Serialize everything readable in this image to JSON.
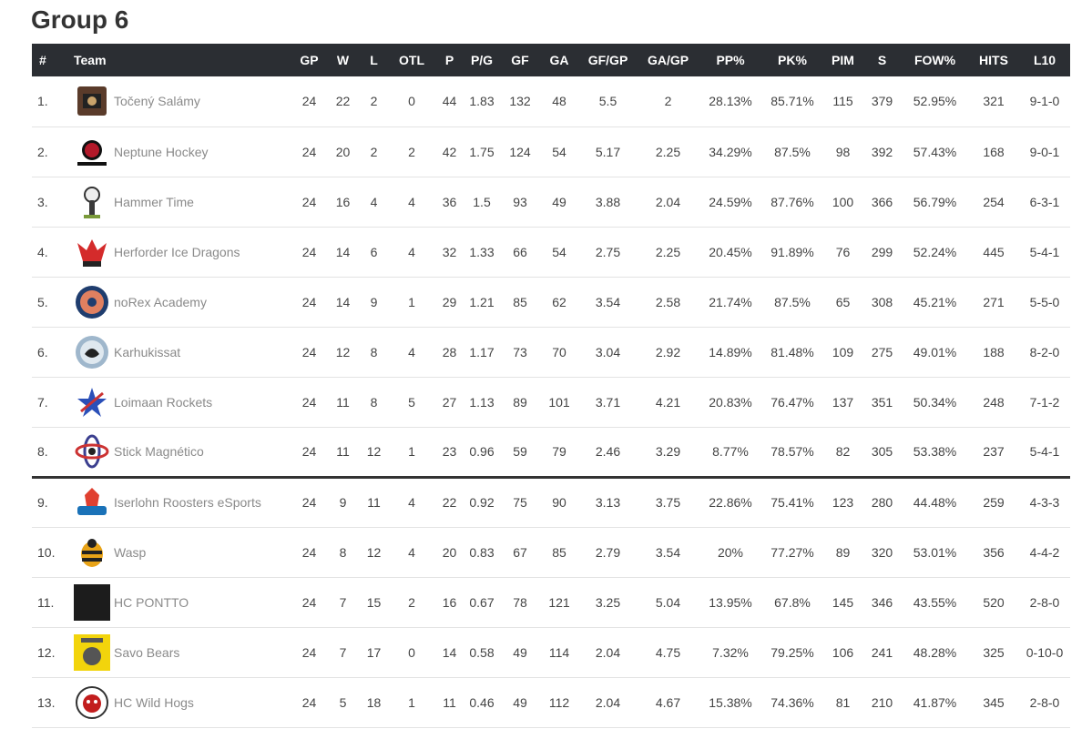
{
  "title": "Group 6",
  "columns": [
    "#",
    "Team",
    "GP",
    "W",
    "L",
    "OTL",
    "P",
    "P/G",
    "GF",
    "GA",
    "GF/GP",
    "GA/GP",
    "PP%",
    "PK%",
    "PIM",
    "S",
    "FOW%",
    "HITS",
    "L10"
  ],
  "cutline_after_rank": 8,
  "rows": [
    {
      "rank": "1.",
      "team": "Točený Salámy",
      "logo": "salamy-logo-icon",
      "color": "#5a3b2a",
      "gp": "24",
      "w": "22",
      "l": "2",
      "otl": "0",
      "p": "44",
      "pg": "1.83",
      "gf": "132",
      "ga": "48",
      "gfgp": "5.5",
      "gagp": "2",
      "pp": "28.13%",
      "pk": "85.71%",
      "pim": "115",
      "s": "379",
      "fow": "52.95%",
      "hits": "321",
      "l10": "9-1-0"
    },
    {
      "rank": "2.",
      "team": "Neptune Hockey",
      "logo": "neptune-logo-icon",
      "color": "#b3192a",
      "gp": "24",
      "w": "20",
      "l": "2",
      "otl": "2",
      "p": "42",
      "pg": "1.75",
      "gf": "124",
      "ga": "54",
      "gfgp": "5.17",
      "gagp": "2.25",
      "pp": "34.29%",
      "pk": "87.5%",
      "pim": "98",
      "s": "392",
      "fow": "57.43%",
      "hits": "168",
      "l10": "9-0-1"
    },
    {
      "rank": "3.",
      "team": "Hammer Time",
      "logo": "hammer-logo-icon",
      "color": "#3a3a3a",
      "gp": "24",
      "w": "16",
      "l": "4",
      "otl": "4",
      "p": "36",
      "pg": "1.5",
      "gf": "93",
      "ga": "49",
      "gfgp": "3.88",
      "gagp": "2.04",
      "pp": "24.59%",
      "pk": "87.76%",
      "pim": "100",
      "s": "366",
      "fow": "56.79%",
      "hits": "254",
      "l10": "6-3-1"
    },
    {
      "rank": "4.",
      "team": "Herforder Ice Dragons",
      "logo": "dragon-logo-icon",
      "color": "#d42b2b",
      "gp": "24",
      "w": "14",
      "l": "6",
      "otl": "4",
      "p": "32",
      "pg": "1.33",
      "gf": "66",
      "ga": "54",
      "gfgp": "2.75",
      "gagp": "2.25",
      "pp": "20.45%",
      "pk": "91.89%",
      "pim": "76",
      "s": "299",
      "fow": "52.24%",
      "hits": "445",
      "l10": "5-4-1"
    },
    {
      "rank": "5.",
      "team": "noRex Academy",
      "logo": "norex-logo-icon",
      "color": "#1f3d6e",
      "gp": "24",
      "w": "14",
      "l": "9",
      "otl": "1",
      "p": "29",
      "pg": "1.21",
      "gf": "85",
      "ga": "62",
      "gfgp": "3.54",
      "gagp": "2.58",
      "pp": "21.74%",
      "pk": "87.5%",
      "pim": "65",
      "s": "308",
      "fow": "45.21%",
      "hits": "271",
      "l10": "5-5-0"
    },
    {
      "rank": "6.",
      "team": "Karhukissat",
      "logo": "karhukissat-logo-icon",
      "color": "#2d4f7a",
      "gp": "24",
      "w": "12",
      "l": "8",
      "otl": "4",
      "p": "28",
      "pg": "1.17",
      "gf": "73",
      "ga": "70",
      "gfgp": "3.04",
      "gagp": "2.92",
      "pp": "14.89%",
      "pk": "81.48%",
      "pim": "109",
      "s": "275",
      "fow": "49.01%",
      "hits": "188",
      "l10": "8-2-0"
    },
    {
      "rank": "7.",
      "team": "Loimaan Rockets",
      "logo": "rockets-logo-icon",
      "color": "#2a4fb8",
      "gp": "24",
      "w": "11",
      "l": "8",
      "otl": "5",
      "p": "27",
      "pg": "1.13",
      "gf": "89",
      "ga": "101",
      "gfgp": "3.71",
      "gagp": "4.21",
      "pp": "20.83%",
      "pk": "76.47%",
      "pim": "137",
      "s": "351",
      "fow": "50.34%",
      "hits": "248",
      "l10": "7-1-2"
    },
    {
      "rank": "8.",
      "team": "Stick Magnético",
      "logo": "stick-logo-icon",
      "color": "#3b3f8f",
      "gp": "24",
      "w": "11",
      "l": "12",
      "otl": "1",
      "p": "23",
      "pg": "0.96",
      "gf": "59",
      "ga": "79",
      "gfgp": "2.46",
      "gagp": "3.29",
      "pp": "8.77%",
      "pk": "78.57%",
      "pim": "82",
      "s": "305",
      "fow": "53.38%",
      "hits": "237",
      "l10": "5-4-1"
    },
    {
      "rank": "9.",
      "team": "Iserlohn Roosters eSports",
      "logo": "roosters-logo-icon",
      "color": "#1a72b8",
      "gp": "24",
      "w": "9",
      "l": "11",
      "otl": "4",
      "p": "22",
      "pg": "0.92",
      "gf": "75",
      "ga": "90",
      "gfgp": "3.13",
      "gagp": "3.75",
      "pp": "22.86%",
      "pk": "75.41%",
      "pim": "123",
      "s": "280",
      "fow": "44.48%",
      "hits": "259",
      "l10": "4-3-3"
    },
    {
      "rank": "10.",
      "team": "Wasp",
      "logo": "wasp-logo-icon",
      "color": "#e8a317",
      "gp": "24",
      "w": "8",
      "l": "12",
      "otl": "4",
      "p": "20",
      "pg": "0.83",
      "gf": "67",
      "ga": "85",
      "gfgp": "2.79",
      "gagp": "3.54",
      "pp": "20%",
      "pk": "77.27%",
      "pim": "89",
      "s": "320",
      "fow": "53.01%",
      "hits": "356",
      "l10": "4-4-2"
    },
    {
      "rank": "11.",
      "team": "HC PONTTO",
      "logo": "pontto-logo-icon",
      "color": "#1c1c1c",
      "gp": "24",
      "w": "7",
      "l": "15",
      "otl": "2",
      "p": "16",
      "pg": "0.67",
      "gf": "78",
      "ga": "121",
      "gfgp": "3.25",
      "gagp": "5.04",
      "pp": "13.95%",
      "pk": "67.8%",
      "pim": "145",
      "s": "346",
      "fow": "43.55%",
      "hits": "520",
      "l10": "2-8-0"
    },
    {
      "rank": "12.",
      "team": "Savo Bears",
      "logo": "savo-bears-logo-icon",
      "color": "#f2d40c",
      "gp": "24",
      "w": "7",
      "l": "17",
      "otl": "0",
      "p": "14",
      "pg": "0.58",
      "gf": "49",
      "ga": "114",
      "gfgp": "2.04",
      "gagp": "4.75",
      "pp": "7.32%",
      "pk": "79.25%",
      "pim": "106",
      "s": "241",
      "fow": "48.28%",
      "hits": "325",
      "l10": "0-10-0"
    },
    {
      "rank": "13.",
      "team": "HC Wild Hogs",
      "logo": "wild-hogs-logo-icon",
      "color": "#c21d1d",
      "gp": "24",
      "w": "5",
      "l": "18",
      "otl": "1",
      "p": "11",
      "pg": "0.46",
      "gf": "49",
      "ga": "112",
      "gfgp": "2.04",
      "gagp": "4.67",
      "pp": "15.38%",
      "pk": "74.36%",
      "pim": "81",
      "s": "210",
      "fow": "41.87%",
      "hits": "345",
      "l10": "2-8-0"
    }
  ]
}
